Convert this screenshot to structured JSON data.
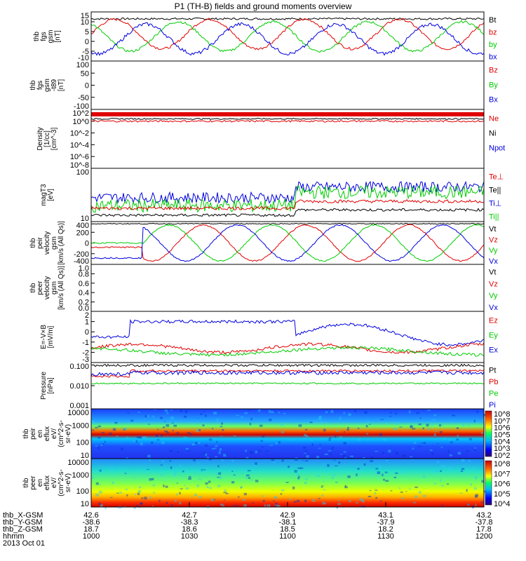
{
  "title": "P1 (TH-B) fields and ground moments overview",
  "colors": {
    "black": "#000000",
    "red": "#e00000",
    "green": "#00cc00",
    "blue": "#0000dd"
  },
  "chart_data": [
    {
      "id": "fgs_gsm",
      "type": "line",
      "ylabel": [
        "thb",
        "fgs",
        "gsm",
        "[nT]"
      ],
      "yticks": [
        "15",
        "10",
        "5",
        "0",
        "-5",
        "-10"
      ],
      "ylim": [
        -10,
        15
      ],
      "legend": [
        {
          "label": "Bt",
          "color": "black"
        },
        {
          "label": "bz",
          "color": "red"
        },
        {
          "label": "by",
          "color": "green"
        },
        {
          "label": "bx",
          "color": "blue"
        }
      ],
      "series_shape": {
        "Bt": "~11 flat",
        "bz": "oscillating +/-8",
        "by": "oscillating +/-8",
        "bx": "oscillating +/-8"
      }
    },
    {
      "id": "fgs_gsm_t89",
      "type": "line",
      "ylabel": [
        "thb",
        "fgs",
        "gsm",
        "-t89",
        "[nT]"
      ],
      "yticks": [
        "100",
        "50",
        "0",
        "-50",
        "-100"
      ],
      "ylim": [
        -120,
        100
      ],
      "legend": [
        {
          "label": "Bz",
          "color": "red"
        },
        {
          "label": "By",
          "color": "green"
        },
        {
          "label": "Bx",
          "color": "blue"
        }
      ]
    },
    {
      "id": "density",
      "type": "line",
      "ylabel": [
        "Density",
        "[1/cc]",
        "[cm^-3]"
      ],
      "yticks": [
        "10^2",
        "10^0",
        "10^-2",
        "10^-4",
        "10^-6",
        "10^-8"
      ],
      "log": true,
      "legend": [
        {
          "label": "Ne",
          "color": "red"
        },
        {
          "label": "Ni",
          "color": "black"
        },
        {
          "label": "Npot",
          "color": "blue"
        }
      ]
    },
    {
      "id": "temperature",
      "type": "line",
      "ylabel": [
        "magT3",
        "[eV]"
      ],
      "yticks": [
        "100",
        "10"
      ],
      "log": true,
      "legend": [
        {
          "label": "Te⊥",
          "color": "red"
        },
        {
          "label": "Te||",
          "color": "black"
        },
        {
          "label": "Ti⊥",
          "color": "blue"
        },
        {
          "label": "Ti||",
          "color": "green"
        }
      ]
    },
    {
      "id": "peir_velocity",
      "type": "line",
      "ylabel": [
        "thb",
        "peir",
        "velocity",
        "gsm",
        "[km/s (All Qs)]"
      ],
      "yticks": [
        "400",
        "200",
        "0",
        "-200",
        "-400"
      ],
      "ylim": [
        -400,
        400
      ],
      "legend": [
        {
          "label": "Vt",
          "color": "black"
        },
        {
          "label": "Vz",
          "color": "red"
        },
        {
          "label": "Vy",
          "color": "green"
        },
        {
          "label": "Vx",
          "color": "blue"
        }
      ]
    },
    {
      "id": "peer_velocity",
      "type": "line",
      "ylabel": [
        "thb",
        "peer",
        "velocity",
        "gsm",
        "[km/s (All Qs)]"
      ],
      "yticks": [
        "1.0",
        "0.8",
        "0.6",
        "0.4",
        "0.2",
        "0.0"
      ],
      "ylim": [
        0,
        1
      ],
      "legend": [
        {
          "label": "Vt",
          "color": "black"
        },
        {
          "label": "Vz",
          "color": "red"
        },
        {
          "label": "Vy",
          "color": "green"
        },
        {
          "label": "Vx",
          "color": "blue"
        }
      ]
    },
    {
      "id": "efield",
      "type": "line",
      "ylabel": [
        "E=-V×B",
        "[mV/m]"
      ],
      "yticks": [
        "2",
        "1",
        "0",
        "-1",
        "-2",
        "-3"
      ],
      "ylim": [
        -3,
        2
      ],
      "legend": [
        {
          "label": "Ez",
          "color": "red"
        },
        {
          "label": "Ey",
          "color": "green"
        },
        {
          "label": "Ex",
          "color": "blue"
        }
      ]
    },
    {
      "id": "pressure",
      "type": "line",
      "ylabel": [
        "Pressure",
        "[nPa]"
      ],
      "yticks": [
        "0.100",
        "0.010",
        "0.001"
      ],
      "log": true,
      "legend": [
        {
          "label": "Pt",
          "color": "black"
        },
        {
          "label": "Pb",
          "color": "red"
        },
        {
          "label": "Pe",
          "color": "green"
        },
        {
          "label": "Pi",
          "color": "blue"
        }
      ]
    },
    {
      "id": "peir_spec",
      "type": "heatmap",
      "ylabel": [
        "thb",
        "peir",
        "en",
        "eflux",
        "eV/",
        "(cm^2-s-",
        "sr-eV)"
      ],
      "yticks": [
        "10000",
        "1000",
        "100",
        "10"
      ],
      "colorbar": [
        "10^8",
        "10^7",
        "10^6",
        "10^5",
        "10^4",
        "10^3",
        "10^2"
      ]
    },
    {
      "id": "peer_spec",
      "type": "heatmap",
      "ylabel": [
        "thb",
        "peer",
        "en",
        "eflux",
        "eV/",
        "(cm^2-s-",
        "sr-eV)"
      ],
      "yticks": [
        "10000",
        "1000",
        "100",
        "10"
      ],
      "colorbar": [
        "10^8",
        "10^7",
        "10^6",
        "10^5",
        "10^4"
      ]
    }
  ],
  "footer": {
    "row_labels": [
      "thb_X-GSM",
      "thb_Y-GSM",
      "thb_Z-GSM",
      "hhmm",
      "2013 Oct 01"
    ],
    "columns": [
      [
        "42.6",
        "-38.6",
        "18.7",
        "1000"
      ],
      [
        "42.7",
        "-38.3",
        "18.6",
        "1030"
      ],
      [
        "42.9",
        "-38.1",
        "18.5",
        "1100"
      ],
      [
        "43.1",
        "-37.9",
        "18.2",
        "1130"
      ],
      [
        "43.2",
        "-37.8",
        "17.8",
        "1200"
      ]
    ]
  }
}
